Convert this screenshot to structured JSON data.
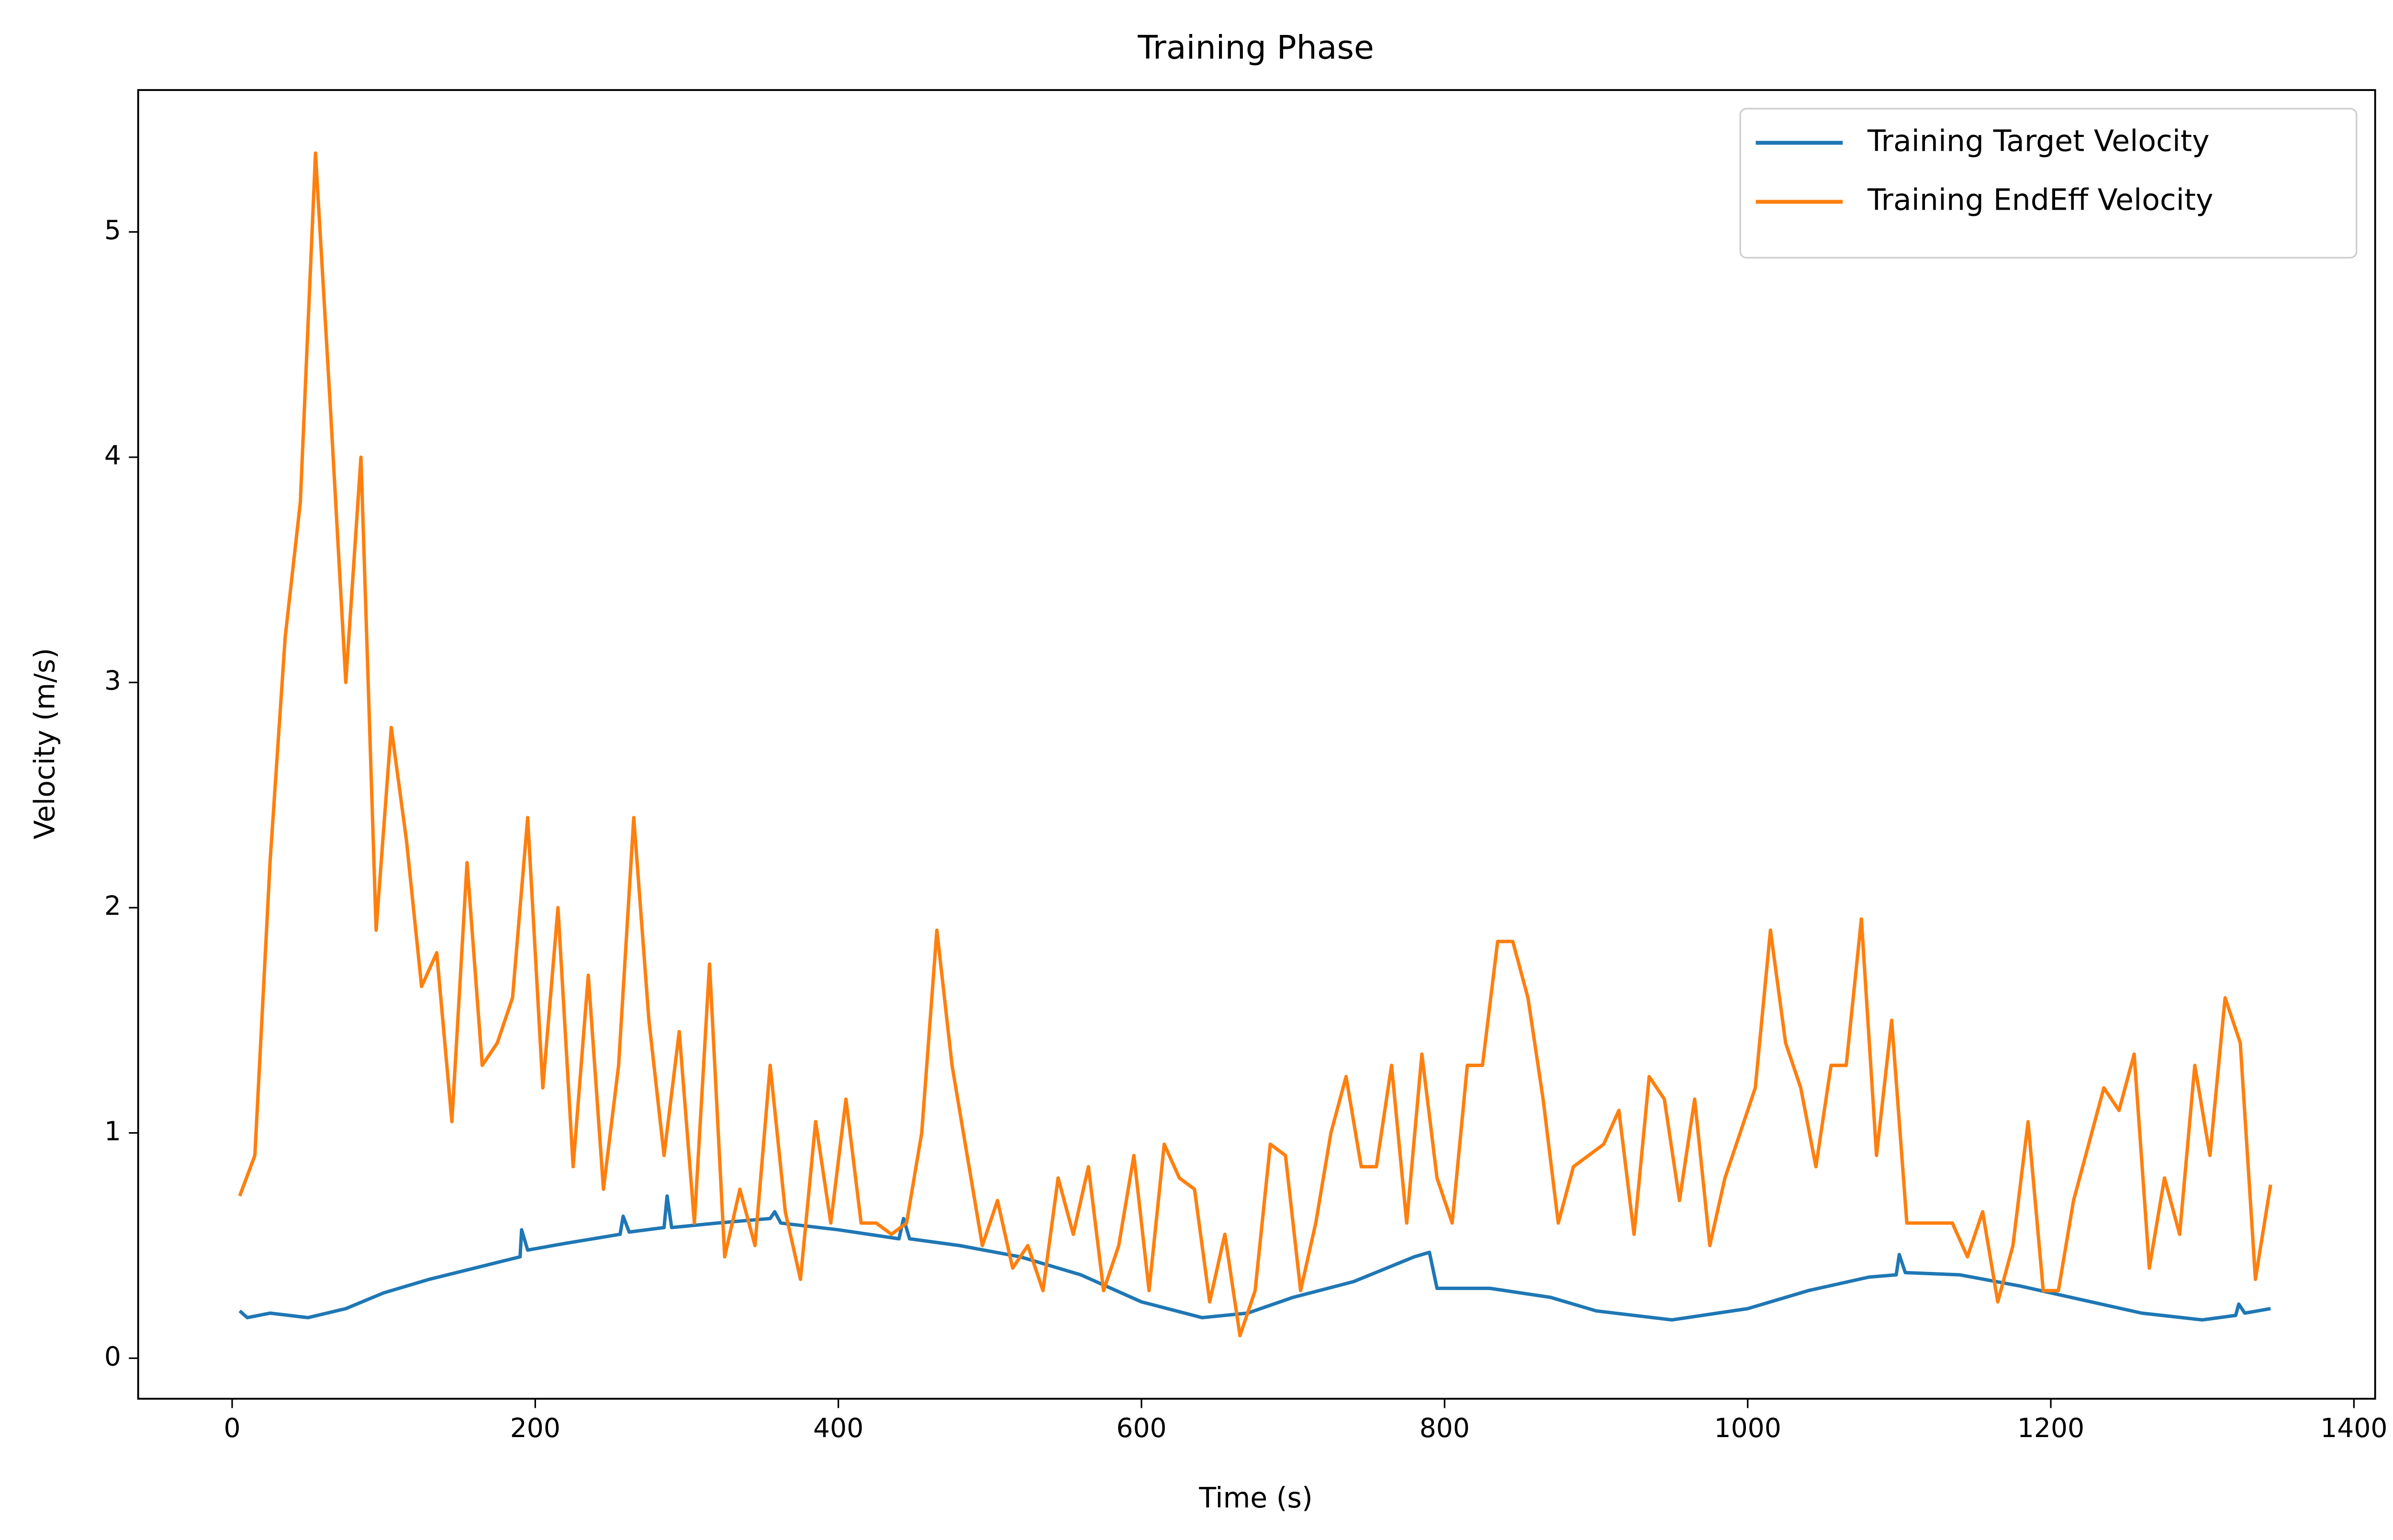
{
  "chart_data": {
    "type": "line",
    "title": "Training Phase",
    "x_label": "Time (s)",
    "y_label": "Velocity (m/s)",
    "xlim": [
      -62,
      1414
    ],
    "ylim": [
      -0.18,
      5.63
    ],
    "xticks": [
      0,
      200,
      400,
      600,
      800,
      1000,
      1200,
      1400
    ],
    "yticks": [
      0,
      1,
      2,
      3,
      4,
      5
    ],
    "legend": "upper right",
    "series": [
      {
        "name": "Training Target Velocity",
        "color": "#1f77b4",
        "x": [
          5,
          10,
          25,
          50,
          75,
          100,
          130,
          160,
          190,
          191,
          195,
          220,
          256,
          258,
          262,
          285,
          287,
          290,
          320,
          355,
          358,
          362,
          400,
          440,
          443,
          447,
          480,
          520,
          560,
          600,
          640,
          670,
          700,
          740,
          780,
          790,
          795,
          830,
          870,
          900,
          950,
          1000,
          1040,
          1080,
          1098,
          1100,
          1104,
          1140,
          1180,
          1220,
          1260,
          1300,
          1322,
          1324,
          1328,
          1345
        ],
        "values": [
          0.21,
          0.18,
          0.2,
          0.18,
          0.22,
          0.29,
          0.35,
          0.4,
          0.45,
          0.57,
          0.48,
          0.51,
          0.55,
          0.63,
          0.56,
          0.58,
          0.72,
          0.58,
          0.6,
          0.62,
          0.65,
          0.6,
          0.57,
          0.53,
          0.62,
          0.53,
          0.5,
          0.45,
          0.37,
          0.25,
          0.18,
          0.2,
          0.27,
          0.34,
          0.45,
          0.47,
          0.31,
          0.31,
          0.27,
          0.21,
          0.17,
          0.22,
          0.3,
          0.36,
          0.37,
          0.46,
          0.38,
          0.37,
          0.32,
          0.26,
          0.2,
          0.17,
          0.19,
          0.24,
          0.2,
          0.22
        ]
      },
      {
        "name": "Training EndEff Velocity",
        "color": "#ff7f0e",
        "x": [
          5,
          15,
          25,
          35,
          45,
          55,
          65,
          75,
          85,
          95,
          105,
          115,
          125,
          135,
          145,
          155,
          165,
          175,
          185,
          195,
          205,
          215,
          225,
          235,
          245,
          255,
          265,
          275,
          285,
          295,
          305,
          315,
          325,
          335,
          345,
          355,
          365,
          375,
          385,
          395,
          405,
          415,
          425,
          435,
          445,
          455,
          465,
          475,
          485,
          495,
          505,
          515,
          525,
          535,
          545,
          555,
          565,
          575,
          585,
          595,
          605,
          615,
          625,
          635,
          645,
          655,
          665,
          675,
          685,
          695,
          705,
          715,
          725,
          735,
          745,
          755,
          765,
          775,
          785,
          795,
          805,
          815,
          825,
          835,
          845,
          855,
          865,
          875,
          885,
          895,
          905,
          915,
          925,
          935,
          945,
          955,
          965,
          975,
          985,
          995,
          1005,
          1015,
          1025,
          1035,
          1045,
          1055,
          1065,
          1075,
          1085,
          1095,
          1105,
          1115,
          1125,
          1135,
          1145,
          1155,
          1165,
          1175,
          1185,
          1195,
          1205,
          1215,
          1225,
          1235,
          1245,
          1255,
          1265,
          1275,
          1285,
          1295,
          1305,
          1315,
          1325,
          1335,
          1345
        ],
        "values": [
          0.72,
          0.9,
          2.2,
          3.2,
          3.8,
          5.35,
          4.2,
          3.0,
          4.0,
          1.9,
          2.8,
          2.3,
          1.65,
          1.8,
          1.05,
          2.2,
          1.3,
          1.4,
          1.6,
          2.4,
          1.2,
          2.0,
          0.85,
          1.7,
          0.75,
          1.3,
          2.4,
          1.5,
          0.9,
          1.45,
          0.6,
          1.75,
          0.45,
          0.75,
          0.5,
          1.3,
          0.65,
          0.35,
          1.05,
          0.6,
          1.15,
          0.6,
          0.6,
          0.55,
          0.6,
          1.0,
          1.9,
          1.3,
          0.9,
          0.5,
          0.7,
          0.4,
          0.5,
          0.3,
          0.8,
          0.55,
          0.85,
          0.3,
          0.5,
          0.9,
          0.3,
          0.95,
          0.8,
          0.75,
          0.25,
          0.55,
          0.1,
          0.3,
          0.95,
          0.9,
          0.3,
          0.6,
          1.0,
          1.25,
          0.85,
          0.85,
          1.3,
          0.6,
          1.35,
          0.8,
          0.6,
          1.3,
          1.3,
          1.85,
          1.85,
          1.6,
          1.15,
          0.6,
          0.85,
          0.9,
          0.95,
          1.1,
          0.55,
          1.25,
          1.15,
          0.7,
          1.15,
          0.5,
          0.8,
          1.0,
          1.2,
          1.9,
          1.4,
          1.2,
          0.85,
          1.3,
          1.3,
          1.95,
          0.9,
          1.5,
          0.6,
          0.6,
          0.6,
          0.6,
          0.45,
          0.65,
          0.25,
          0.5,
          1.05,
          0.3,
          0.3,
          0.7,
          0.95,
          1.2,
          1.1,
          1.35,
          0.4,
          0.8,
          0.55,
          1.3,
          0.9,
          1.6,
          1.4,
          0.35,
          0.77
        ]
      }
    ]
  }
}
